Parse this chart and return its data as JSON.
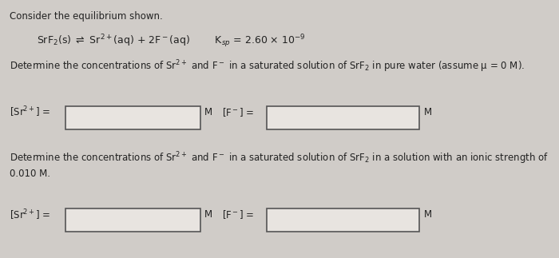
{
  "background_color": "#d0ccc8",
  "title_line": "Consider the equilibrium shown.",
  "equation_line": "SrF$_2$(s) $\\rightleftharpoons$ Sr$^{2+}$(aq) + 2F$^-$(aq)        K$_{sp}$ = 2.60 × 10$^{-9}$",
  "question1": "Determine the concentrations of Sr$^{2+}$ and F$^-$ in a saturated solution of SrF$_2$ in pure water (assume μ = 0 M).",
  "label_sr1": "[Sr$^{2+}$] =",
  "label_f1": "[F$^-$] =",
  "unit1a": "M",
  "unit1b": "M",
  "question2_line1": "Determine the concentrations of Sr$^{2+}$ and F$^-$ in a saturated solution of SrF$_2$ in a solution with an ionic strength of",
  "question2_line2": "0.010 M.",
  "label_sr2": "[Sr$^{2+}$] =",
  "label_f2": "[F$^-$] =",
  "unit2a": "M",
  "unit2b": "M",
  "box_facecolor": "#e8e4e0",
  "box_edgecolor": "#555555",
  "text_color": "#222222"
}
